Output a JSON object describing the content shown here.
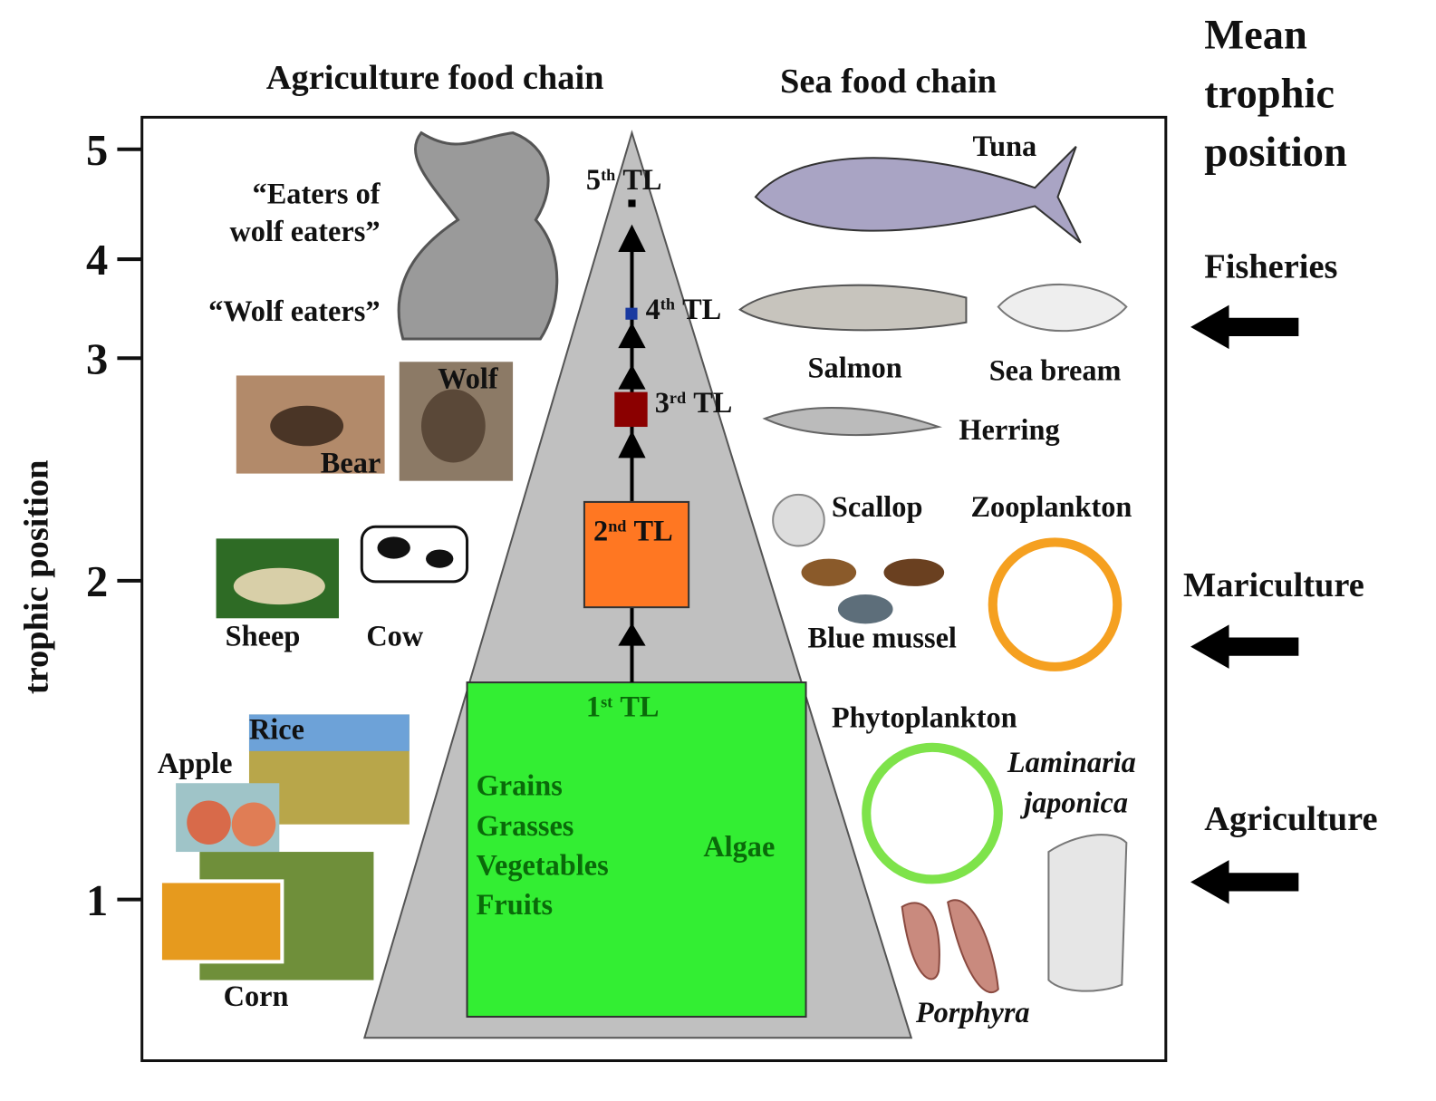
{
  "header": {
    "agriculture_title": "Agriculture food chain",
    "sea_title": "Sea food chain",
    "mean_title": [
      "Mean",
      "trophic",
      "position"
    ]
  },
  "y_axis": {
    "label": "trophic position",
    "ticks": [
      "5",
      "4",
      "3",
      "2",
      "1"
    ]
  },
  "trophic_levels": [
    {
      "num": "5",
      "sup": "th",
      "text": "TL"
    },
    {
      "num": "4",
      "sup": "th",
      "text": "TL"
    },
    {
      "num": "3",
      "sup": "rd",
      "text": "TL"
    },
    {
      "num": "2",
      "sup": "nd",
      "text": "TL"
    },
    {
      "num": "1",
      "sup": "st",
      "text": "TL"
    }
  ],
  "first_level": {
    "land": [
      "Grains",
      "Grasses",
      "Vegetables",
      "Fruits"
    ],
    "sea": "Algae"
  },
  "agriculture_labels": {
    "eaters_of_wolf_eaters": [
      "“Eaters of",
      "wolf eaters”"
    ],
    "wolf_eaters": "“Wolf eaters”",
    "wolf": "Wolf",
    "bear": "Bear",
    "sheep": "Sheep",
    "cow": "Cow",
    "rice": "Rice",
    "apple": "Apple",
    "corn": "Corn"
  },
  "sea_labels": {
    "tuna": "Tuna",
    "salmon": "Salmon",
    "sea_bream": "Sea bream",
    "herring": "Herring",
    "scallop": "Scallop",
    "zooplankton": "Zooplankton",
    "blue_mussel": "Blue mussel",
    "phytoplankton": "Phytoplankton",
    "laminaria": [
      "Laminaria",
      "japonica"
    ],
    "porphyra": "Porphyra"
  },
  "sectors": [
    "Fisheries",
    "Mariculture",
    "Agriculture"
  ]
}
